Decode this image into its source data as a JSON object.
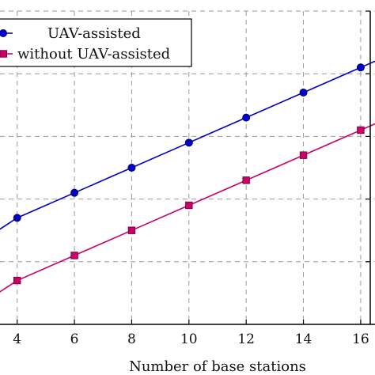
{
  "chart_data": {
    "type": "line",
    "xlabel": "Number of base stations",
    "ylabel": "",
    "title": "",
    "xlim": [
      3.4,
      16.5
    ],
    "ylim": [
      0,
      5
    ],
    "x_ticks": [
      4,
      6,
      8,
      10,
      12,
      14,
      16
    ],
    "y_grid": [
      1,
      2,
      3,
      4,
      5
    ],
    "grid": true,
    "legend_position": "top-left",
    "series": [
      {
        "name": "UAV-assisted",
        "color": "#0000c8",
        "marker": "circle",
        "x": [
          3,
          4,
          6,
          8,
          10,
          12,
          14,
          16,
          17
        ],
        "y": [
          1.4,
          1.7,
          2.1,
          2.5,
          2.9,
          3.3,
          3.7,
          4.1,
          4.3
        ]
      },
      {
        "name": "without UAV-assisted",
        "color": "#c8006a",
        "marker": "square",
        "x": [
          3,
          4,
          6,
          8,
          10,
          12,
          14,
          16,
          17
        ],
        "y": [
          0.4,
          0.7,
          1.1,
          1.5,
          1.9,
          2.3,
          2.7,
          3.1,
          3.3
        ]
      }
    ]
  }
}
